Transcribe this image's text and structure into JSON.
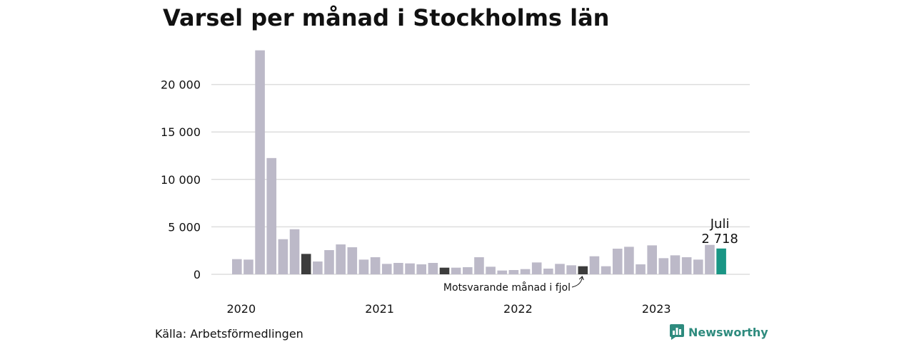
{
  "title": "Varsel per månad i Stockholms län",
  "source": "Källa: Arbetsförmedlingen",
  "brand": {
    "name": "Newsworthy",
    "icon": "newsworthy-logo-icon",
    "color": "#2e8b7e"
  },
  "colors": {
    "default": "#bcb9c8",
    "highlight": "#3c3c3c",
    "current": "#1a9685",
    "grid": "#dddddd"
  },
  "chart_data": {
    "type": "bar",
    "title": "Varsel per månad i Stockholms län",
    "xlabel": "",
    "ylabel": "",
    "ylim": [
      0,
      25000
    ],
    "yticks": [
      0,
      5000,
      10000,
      15000,
      20000
    ],
    "ytick_labels": [
      "0",
      "5 000",
      "10 000",
      "15 000",
      "20 000"
    ],
    "xtick_labels": [
      {
        "label": "2020",
        "index": 0
      },
      {
        "label": "2021",
        "index": 12
      },
      {
        "label": "2022",
        "index": 24
      },
      {
        "label": "2023",
        "index": 36
      }
    ],
    "grid": true,
    "categories": [
      "2020-01",
      "2020-02",
      "2020-03",
      "2020-04",
      "2020-05",
      "2020-06",
      "2020-07",
      "2020-08",
      "2020-09",
      "2020-10",
      "2020-11",
      "2020-12",
      "2021-01",
      "2021-02",
      "2021-03",
      "2021-04",
      "2021-05",
      "2021-06",
      "2021-07",
      "2021-08",
      "2021-09",
      "2021-10",
      "2021-11",
      "2021-12",
      "2022-01",
      "2022-02",
      "2022-03",
      "2022-04",
      "2022-05",
      "2022-06",
      "2022-07",
      "2022-08",
      "2022-09",
      "2022-10",
      "2022-11",
      "2022-12",
      "2023-01",
      "2023-02",
      "2023-03",
      "2023-04",
      "2023-05",
      "2023-06",
      "2023-07"
    ],
    "values": [
      1600,
      1550,
      23600,
      12250,
      3700,
      4750,
      2150,
      1350,
      2550,
      3150,
      2850,
      1550,
      1800,
      1100,
      1200,
      1150,
      1050,
      1200,
      700,
      700,
      750,
      1800,
      800,
      400,
      450,
      550,
      1250,
      600,
      1100,
      950,
      850,
      1900,
      850,
      2700,
      2900,
      1050,
      3050,
      1700,
      2000,
      1800,
      1550,
      3100,
      2718
    ],
    "highlight_indices": [
      6,
      18,
      30
    ],
    "current_index": 42,
    "annotations": {
      "current_month": "Juli",
      "current_value": "2 718",
      "last_year_note": "Motsvarande månad i fjol"
    }
  }
}
